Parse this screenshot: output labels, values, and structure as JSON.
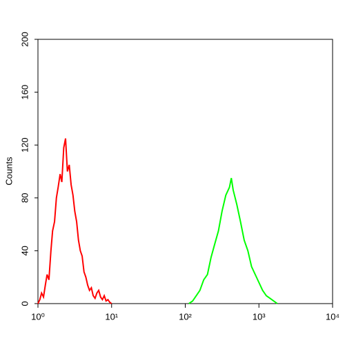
{
  "chart_data": {
    "type": "line",
    "y_label": "Counts",
    "xscale": "log",
    "xlim": [
      1,
      10000
    ],
    "xticks": [
      {
        "value": 1,
        "label": "10⁰"
      },
      {
        "value": 10,
        "label": "10¹"
      },
      {
        "value": 100,
        "label": "10²"
      },
      {
        "value": 1000,
        "label": "10³"
      },
      {
        "value": 10000,
        "label": "10⁴"
      }
    ],
    "ylim": [
      0,
      200
    ],
    "yticks": [
      0,
      40,
      80,
      120,
      160,
      200
    ],
    "series": [
      {
        "color": "#ff0000",
        "x": [
          1.0,
          1.06,
          1.12,
          1.19,
          1.26,
          1.33,
          1.41,
          1.5,
          1.58,
          1.68,
          1.78,
          1.88,
          2.0,
          2.11,
          2.24,
          2.37,
          2.51,
          2.66,
          2.82,
          2.99,
          3.16,
          3.35,
          3.55,
          3.76,
          3.98,
          4.22,
          4.47,
          4.73,
          5.01,
          5.31,
          5.62,
          5.96,
          6.31,
          6.68,
          7.08,
          7.5,
          7.94,
          8.41,
          8.91,
          9.44,
          10.0
        ],
        "values": [
          0,
          3,
          8,
          5,
          14,
          22,
          18,
          40,
          55,
          62,
          80,
          88,
          98,
          92,
          118,
          125,
          100,
          105,
          90,
          82,
          70,
          62,
          48,
          40,
          36,
          24,
          20,
          14,
          10,
          12,
          6,
          4,
          8,
          10,
          5,
          3,
          6,
          2,
          3,
          1,
          0
        ]
      },
      {
        "color": "#00ff00",
        "x": [
          112,
          126,
          141,
          158,
          178,
          200,
          224,
          251,
          282,
          316,
          355,
          398,
          422,
          447,
          501,
          562,
          631,
          708,
          794,
          891,
          1000,
          1122,
          1259,
          1413,
          1585,
          1778
        ],
        "values": [
          0,
          2,
          6,
          10,
          18,
          22,
          35,
          45,
          55,
          70,
          82,
          88,
          95,
          86,
          75,
          62,
          48,
          40,
          28,
          22,
          16,
          10,
          6,
          4,
          2,
          0
        ]
      }
    ]
  }
}
